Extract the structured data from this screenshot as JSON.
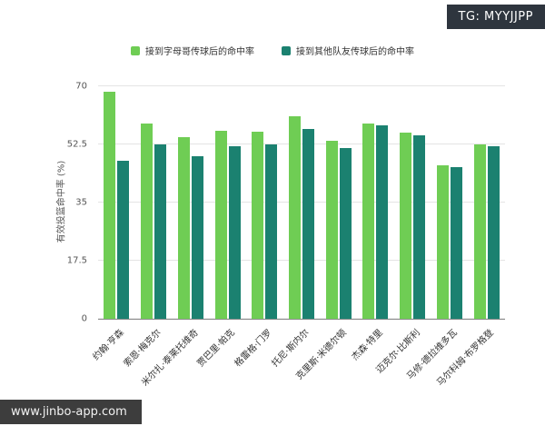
{
  "badge": {
    "text": "TG: MYYJJPP"
  },
  "watermark": {
    "text": "www.jinbo-app.com"
  },
  "chart_data": {
    "type": "bar",
    "title": "",
    "xlabel": "",
    "ylabel": "有效投篮命中率 (%)",
    "ylim": [
      0,
      70
    ],
    "yticks": [
      0,
      17.5,
      35,
      52.5,
      70
    ],
    "grid": true,
    "legend_position": "top",
    "categories": [
      "约翰·亨森",
      "索恩·梅克尔",
      "米尔扎·泰莱托维奇",
      "贾巴里·帕克",
      "格雷格·门罗",
      "托尼·斯内尔",
      "克里斯·米德尔顿",
      "杰森·特里",
      "迈克尔·比斯利",
      "马修·德拉维多瓦",
      "马尔科姆·布罗格登"
    ],
    "series": [
      {
        "name": "接到字母哥传球后的命中率",
        "color": "#6fcd54",
        "values": [
          68.5,
          58.7,
          54.6,
          56.5,
          56.2,
          61.0,
          53.5,
          58.7,
          56.0,
          46.3,
          52.4
        ]
      },
      {
        "name": "接到其他队友传球后的命中率",
        "color": "#1b8170",
        "values": [
          47.5,
          52.5,
          49.0,
          52.0,
          52.5,
          57.2,
          51.5,
          58.2,
          55.2,
          45.8,
          51.9
        ]
      }
    ]
  }
}
